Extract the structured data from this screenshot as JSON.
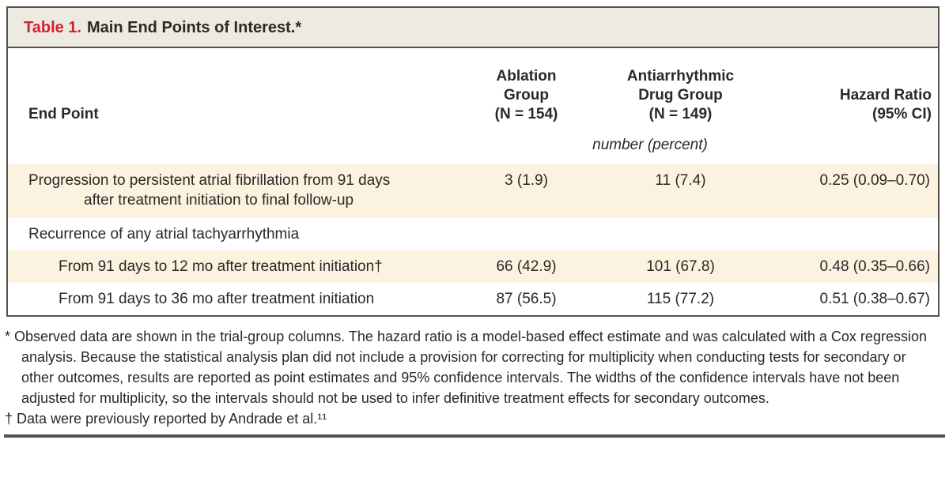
{
  "table": {
    "title_label": "Table 1.",
    "title_text": "Main End Points of Interest.*",
    "columns": {
      "end_point": "End Point",
      "ablation": "Ablation\nGroup\n(N = 154)",
      "drug": "Antiarrhythmic\nDrug Group\n(N = 149)",
      "hazard": "Hazard Ratio\n(95% CI)"
    },
    "unit_note": "number (percent)",
    "rows": [
      {
        "label": "Progression to persistent atrial fibrillation from 91 days\nafter treatment initiation to final follow-up",
        "ablation": "3 (1.9)",
        "drug": "11 (7.4)",
        "hazard": "0.25 (0.09–0.70)"
      },
      {
        "label": "Recurrence of any atrial tachyarrhythmia",
        "ablation": "",
        "drug": "",
        "hazard": ""
      },
      {
        "label": "From 91 days to 12 mo after treatment initiation†",
        "ablation": "66 (42.9)",
        "drug": "101 (67.8)",
        "hazard": "0.48 (0.35–0.66)"
      },
      {
        "label": "From 91 days to 36 mo after treatment initiation",
        "ablation": "87 (56.5)",
        "drug": "115 (77.2)",
        "hazard": "0.51 (0.38–0.67)"
      }
    ]
  },
  "footnotes": [
    {
      "marker": "*",
      "text": "Observed data are shown in the trial-group columns. The hazard ratio is a model-based effect estimate and was calculated with a Cox regression analysis. Because the statistical analysis plan did not include a provision for correcting for multiplicity when conducting tests for secondary or other outcomes, results are reported as point estimates and 95% confidence intervals. The widths of the confidence intervals have not been adjusted for multiplicity, so the intervals should not be used to infer definitive treatment effects for secondary outcomes."
    },
    {
      "marker": "†",
      "text": "Data were previously reported by Andrade et al.¹¹"
    }
  ]
}
